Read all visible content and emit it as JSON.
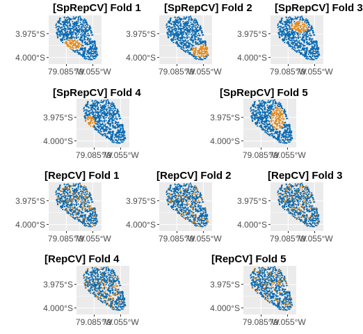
{
  "chart_data": {
    "type": "scatter",
    "colors": {
      "test": "#e08a1e",
      "train": "#0a6bb3"
    },
    "x_tick_labels": [
      "79.085°W",
      "79.055°W"
    ],
    "y_tick_labels": [
      "3.975°S",
      "4.000°S"
    ],
    "x_ticks": [
      -79.085,
      -79.055
    ],
    "y_ticks": [
      -3.975,
      -4.0
    ],
    "xlim": [
      -79.105,
      -79.045
    ],
    "ylim": [
      -4.007,
      -3.955
    ],
    "panels": [
      {
        "title": "[SpRepCV] Fold 1",
        "method": "spatial",
        "test_region": {
          "center": [
            -79.078,
            -3.986
          ],
          "radius": [
            0.011,
            0.006
          ]
        }
      },
      {
        "title": "[SpRepCV] Fold 2",
        "method": "spatial",
        "test_region": {
          "center": [
            -79.058,
            -3.993
          ],
          "radius": [
            0.01,
            0.007
          ]
        }
      },
      {
        "title": "[SpRepCV] Fold 3",
        "method": "spatial",
        "test_region": {
          "center": [
            -79.072,
            -3.967
          ],
          "radius": [
            0.01,
            0.006
          ]
        }
      },
      {
        "title": "[SpRepCV] Fold 4",
        "method": "spatial",
        "test_region": {
          "center": [
            -79.09,
            -3.98
          ],
          "radius": [
            0.006,
            0.007
          ]
        }
      },
      {
        "title": "[SpRepCV] Fold 5",
        "method": "spatial",
        "test_region": {
          "center": [
            -79.066,
            -3.976
          ],
          "radius": [
            0.008,
            0.012
          ]
        }
      },
      {
        "title": "[RepCV] Fold 1",
        "method": "random",
        "test_fraction": 0.2
      },
      {
        "title": "[RepCV] Fold 2",
        "method": "random",
        "test_fraction": 0.2
      },
      {
        "title": "[RepCV] Fold 3",
        "method": "random",
        "test_fraction": 0.2
      },
      {
        "title": "[RepCV] Fold 4",
        "method": "random",
        "test_fraction": 0.2
      },
      {
        "title": "[RepCV] Fold 5",
        "method": "random",
        "test_fraction": 0.2
      }
    ]
  }
}
